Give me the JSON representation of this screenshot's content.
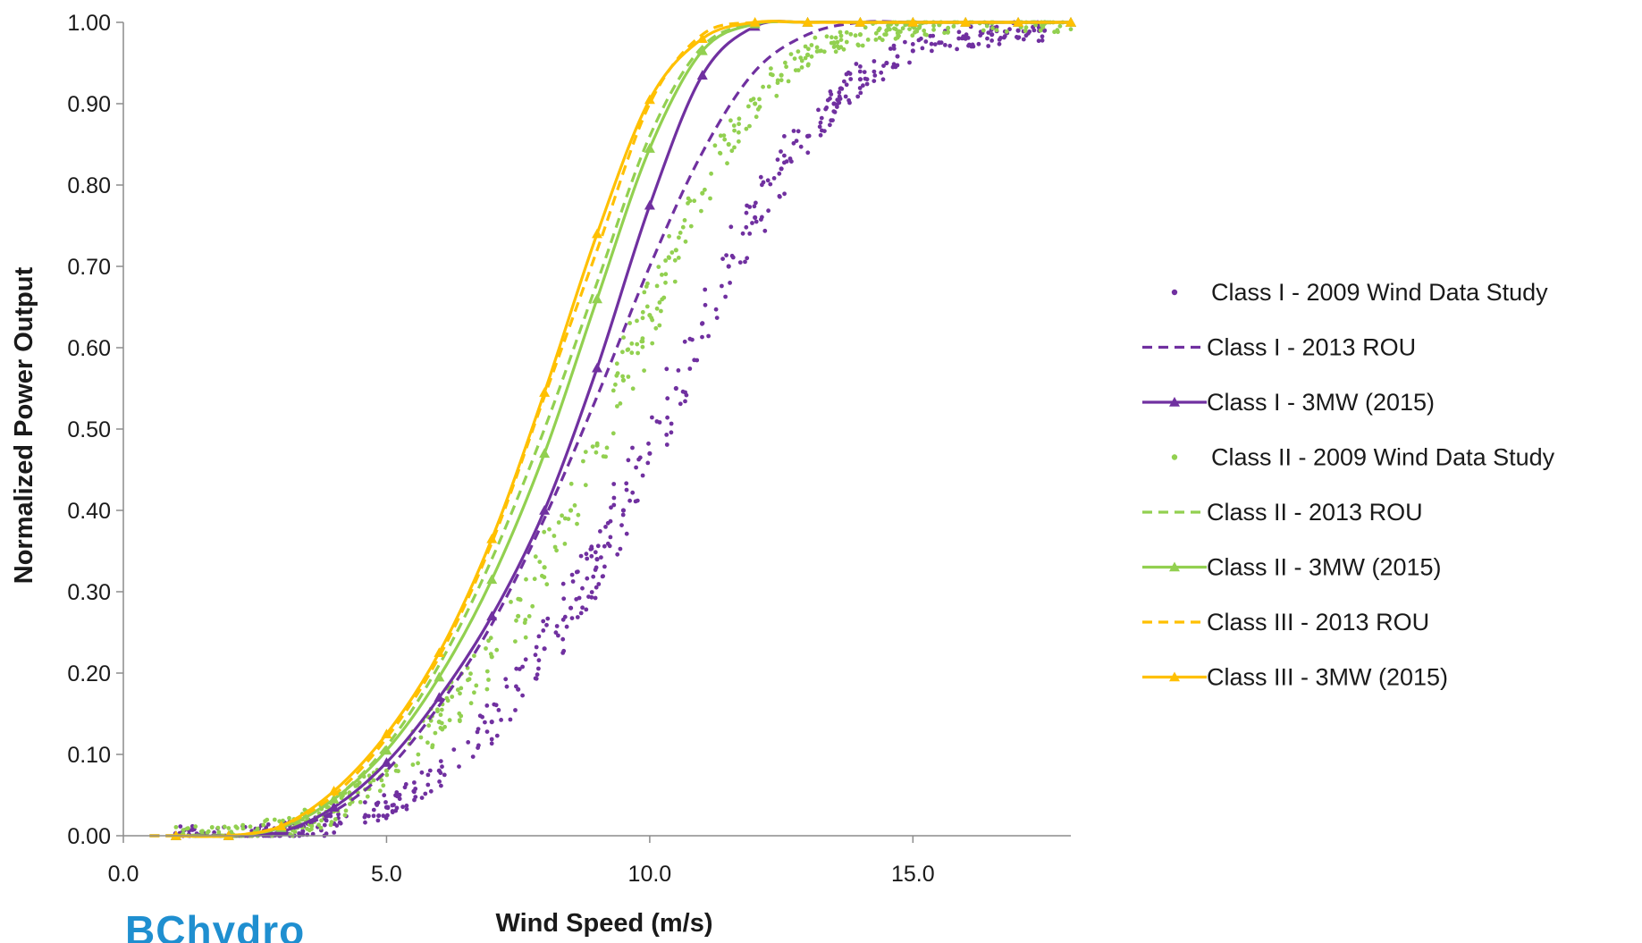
{
  "logo_text": {
    "part1": "BC",
    "part2": "hydro"
  },
  "chart_data": {
    "type": "scatter",
    "title": "",
    "xlabel": "Wind Speed (m/s)",
    "ylabel": "Normalized Power Output",
    "xlim": [
      0,
      18
    ],
    "ylim": [
      0,
      1
    ],
    "xticks": [
      0,
      5,
      10,
      15
    ],
    "xtick_labels": [
      "0.0",
      "5.0",
      "10.0",
      "15.0"
    ],
    "yticks": [
      0,
      0.1,
      0.2,
      0.3,
      0.4,
      0.5,
      0.6,
      0.7,
      0.8,
      0.9,
      1.0
    ],
    "ytick_labels": [
      "0.00",
      "0.10",
      "0.20",
      "0.30",
      "0.40",
      "0.50",
      "0.60",
      "0.70",
      "0.80",
      "0.90",
      "1.00"
    ],
    "grid": false,
    "legend_position": "right",
    "series": [
      {
        "name": "Class I - 2009 Wind Data Study",
        "style": "dots",
        "color": "#7030a0",
        "x": [
          1.0,
          2.0,
          3.0,
          4.0,
          5.0,
          6.0,
          7.0,
          7.5,
          8.0,
          8.5,
          9.0,
          9.5,
          10.0,
          10.5,
          11.0,
          11.5,
          12.0,
          12.5,
          13.0,
          13.5,
          14.0,
          14.5,
          15.0,
          15.5,
          16.0,
          16.5,
          17.0,
          17.5
        ],
        "y": [
          0.0,
          0.0,
          0.005,
          0.015,
          0.035,
          0.08,
          0.14,
          0.18,
          0.23,
          0.28,
          0.34,
          0.4,
          0.47,
          0.55,
          0.63,
          0.7,
          0.76,
          0.82,
          0.86,
          0.9,
          0.93,
          0.95,
          0.965,
          0.975,
          0.98,
          0.985,
          0.99,
          0.99
        ]
      },
      {
        "name": "Class I - 2013 ROU",
        "style": "dashed",
        "color": "#7030a0",
        "x": [
          0.5,
          1,
          2,
          3,
          4,
          5,
          6,
          7,
          8,
          9,
          10,
          11,
          12,
          13,
          14,
          15,
          16,
          17,
          18
        ],
        "y": [
          0.0,
          0.0,
          0.0,
          0.005,
          0.03,
          0.08,
          0.16,
          0.26,
          0.39,
          0.54,
          0.7,
          0.84,
          0.94,
          0.985,
          1.0,
          1.0,
          1.0,
          1.0,
          1.0
        ]
      },
      {
        "name": "Class I - 3MW (2015)",
        "style": "line-triangle",
        "color": "#7030a0",
        "x": [
          1,
          2,
          3,
          4,
          5,
          6,
          7,
          8,
          9,
          10,
          11,
          12,
          13,
          14,
          15,
          16,
          17,
          18
        ],
        "y": [
          0.0,
          0.0,
          0.005,
          0.035,
          0.09,
          0.17,
          0.27,
          0.4,
          0.575,
          0.775,
          0.935,
          0.995,
          1.0,
          1.0,
          1.0,
          1.0,
          1.0,
          1.0
        ]
      },
      {
        "name": "Class II - 2009 Wind Data Study",
        "style": "dots",
        "color": "#92d050",
        "x": [
          1.0,
          2.0,
          2.5,
          3.0,
          3.5,
          4.0,
          5.0,
          6.0,
          7.0,
          7.5,
          8.0,
          8.5,
          9.0,
          9.5,
          10.0,
          10.5,
          11.0,
          11.5,
          12.0,
          12.5,
          13.0,
          13.5,
          14.0,
          14.5,
          15.0,
          15.5,
          16.0,
          16.5,
          17.0,
          17.5,
          18.0
        ],
        "y": [
          0.0,
          0.0,
          0.005,
          0.01,
          0.02,
          0.03,
          0.08,
          0.14,
          0.22,
          0.27,
          0.33,
          0.4,
          0.48,
          0.56,
          0.64,
          0.72,
          0.79,
          0.85,
          0.9,
          0.935,
          0.96,
          0.975,
          0.985,
          0.99,
          0.995,
          0.997,
          0.998,
          0.999,
          1.0,
          1.0,
          1.0
        ]
      },
      {
        "name": "Class II - 2013 ROU",
        "style": "dashed",
        "color": "#92d050",
        "x": [
          0.5,
          1,
          2,
          3,
          4,
          5,
          6,
          7,
          8,
          9,
          10,
          11,
          12,
          13,
          14,
          15,
          16,
          17,
          18
        ],
        "y": [
          0.0,
          0.0,
          0.0,
          0.01,
          0.045,
          0.11,
          0.21,
          0.34,
          0.5,
          0.68,
          0.86,
          0.97,
          0.998,
          1.0,
          1.0,
          1.0,
          1.0,
          1.0,
          1.0
        ]
      },
      {
        "name": "Class II - 3MW (2015)",
        "style": "line-triangle",
        "color": "#92d050",
        "x": [
          1,
          2,
          3,
          4,
          5,
          6,
          7,
          8,
          9,
          10,
          11,
          12,
          13,
          14,
          15,
          16,
          17,
          18
        ],
        "y": [
          0.0,
          0.0,
          0.01,
          0.045,
          0.105,
          0.195,
          0.315,
          0.47,
          0.66,
          0.845,
          0.965,
          0.998,
          1.0,
          1.0,
          1.0,
          1.0,
          1.0,
          1.0
        ]
      },
      {
        "name": "Class III - 2013 ROU",
        "style": "dashed",
        "color": "#ffc000",
        "x": [
          0.5,
          1,
          2,
          3,
          4,
          5,
          6,
          7,
          8,
          9,
          10,
          11,
          12,
          13,
          14,
          15,
          16,
          17,
          18
        ],
        "y": [
          0.0,
          0.0,
          0.0,
          0.012,
          0.05,
          0.12,
          0.22,
          0.36,
          0.54,
          0.72,
          0.9,
          0.985,
          1.0,
          1.0,
          1.0,
          1.0,
          1.0,
          1.0,
          1.0
        ]
      },
      {
        "name": "Class III  - 3MW (2015)",
        "style": "line-triangle",
        "color": "#ffc000",
        "x": [
          1,
          2,
          3,
          4,
          5,
          6,
          7,
          8,
          9,
          10,
          11,
          12,
          13,
          14,
          15,
          16,
          17,
          18
        ],
        "y": [
          0.0,
          0.0,
          0.012,
          0.055,
          0.125,
          0.225,
          0.365,
          0.545,
          0.74,
          0.905,
          0.98,
          1.0,
          1.0,
          1.0,
          1.0,
          1.0,
          1.0,
          1.0
        ]
      }
    ]
  }
}
